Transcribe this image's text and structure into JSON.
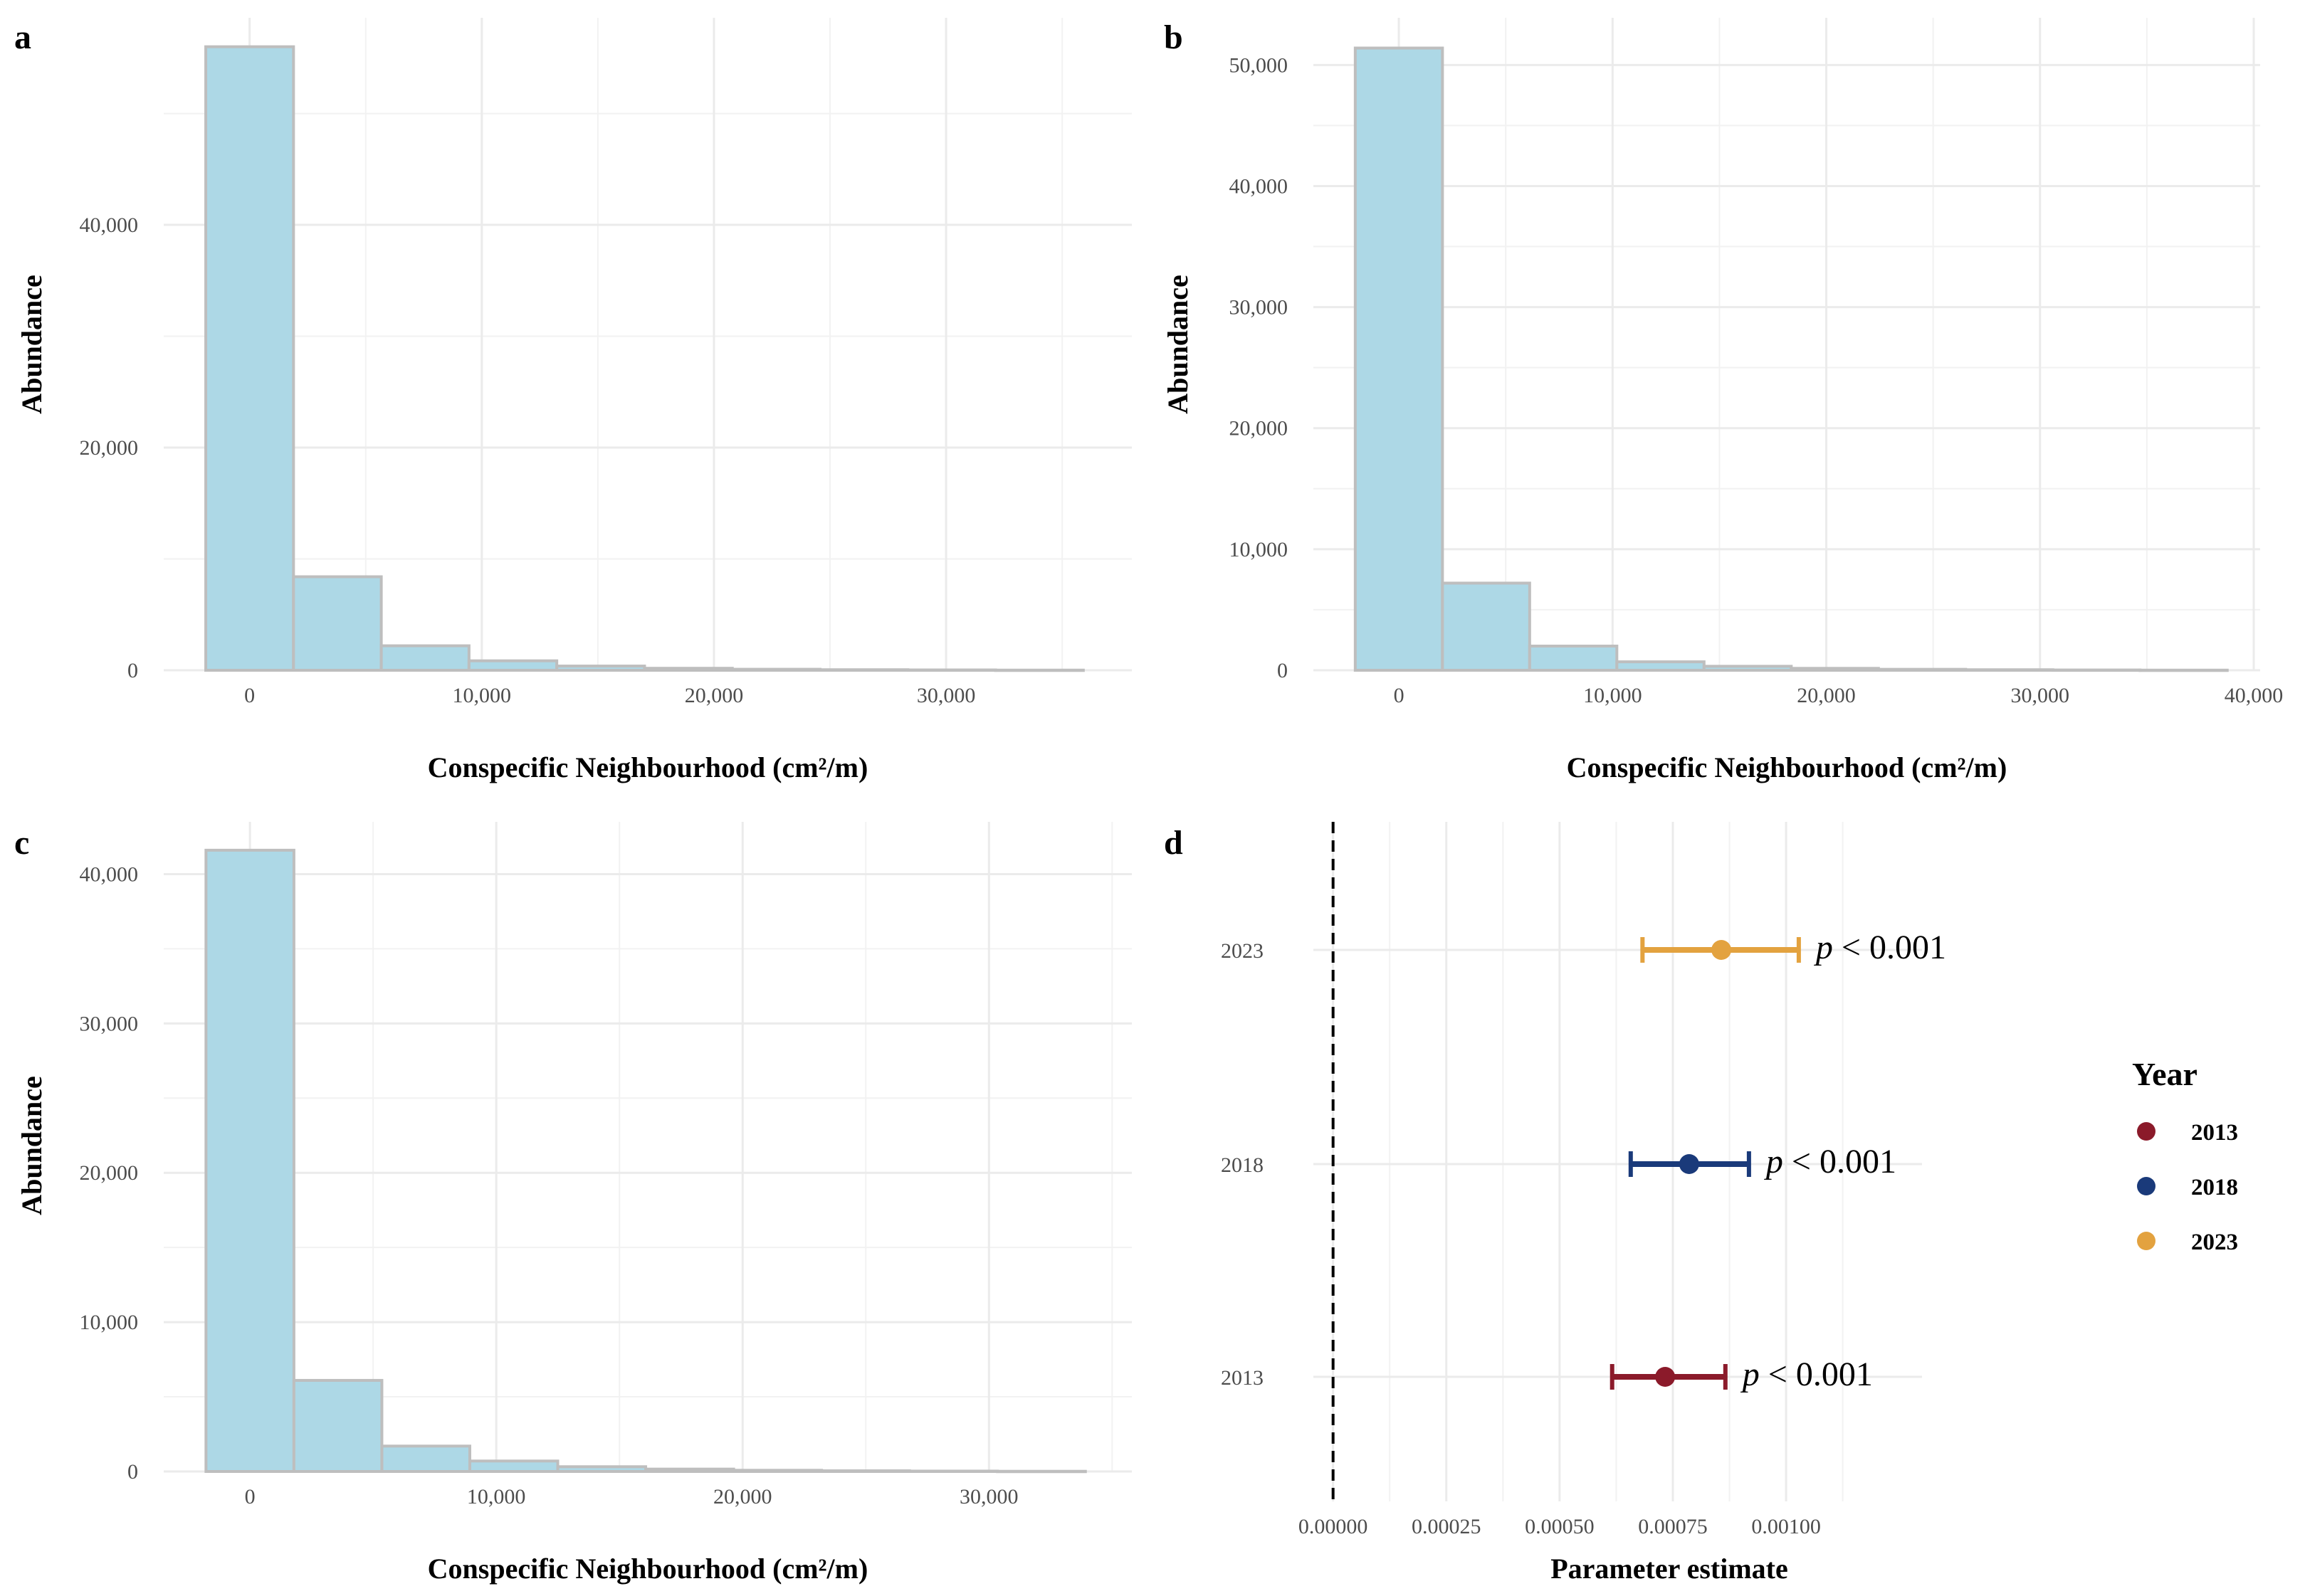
{
  "chart_data": [
    {
      "panel": "a",
      "type": "bar",
      "subtype": "histogram",
      "xlabel": "Conspecific Neighbourhood (cm²/m)",
      "ylabel": "Abundance",
      "xlim": [
        -3700,
        38000
      ],
      "ylim": [
        0,
        58600
      ],
      "x_ticks": [
        0,
        10000,
        20000,
        30000
      ],
      "x_tick_labels": [
        "0",
        "10,000",
        "20,000",
        "30,000"
      ],
      "y_ticks": [
        0,
        20000,
        40000
      ],
      "y_tick_labels": [
        "0",
        "20,000",
        "40,000"
      ],
      "bin_edges": [
        -1890,
        1890,
        5670,
        9450,
        13230,
        17010,
        20790,
        24570,
        28350,
        32130,
        35910
      ],
      "values": [
        56000,
        8400,
        2200,
        850,
        380,
        180,
        90,
        50,
        30,
        15
      ]
    },
    {
      "panel": "b",
      "type": "bar",
      "subtype": "histogram",
      "xlabel": "Conspecific Neighbourhood (cm²/m)",
      "ylabel": "Abundance",
      "xlim": [
        -4000,
        40300
      ],
      "ylim": [
        0,
        53900
      ],
      "x_ticks": [
        0,
        10000,
        20000,
        30000,
        40000
      ],
      "x_tick_labels": [
        "0",
        "10,000",
        "20,000",
        "30,000",
        "40,000"
      ],
      "y_ticks": [
        0,
        10000,
        20000,
        30000,
        40000,
        50000
      ],
      "y_tick_labels": [
        "0",
        "10,000",
        "20,000",
        "30,000",
        "40,000",
        "50,000"
      ],
      "bin_edges": [
        -2040,
        2040,
        6120,
        10200,
        14280,
        18360,
        22440,
        26520,
        30600,
        34680,
        38760
      ],
      "values": [
        51400,
        7200,
        2000,
        700,
        330,
        160,
        80,
        45,
        25,
        12
      ]
    },
    {
      "panel": "c",
      "type": "bar",
      "subtype": "histogram",
      "xlabel": "Conspecific Neighbourhood (cm²/m)",
      "ylabel": "Abundance",
      "xlim": [
        -3500,
        35800
      ],
      "ylim": [
        0,
        43500
      ],
      "x_ticks": [
        0,
        10000,
        20000,
        30000
      ],
      "x_tick_labels": [
        "0",
        "10,000",
        "20,000",
        "30,000"
      ],
      "y_ticks": [
        0,
        10000,
        20000,
        30000,
        40000
      ],
      "y_tick_labels": [
        "0",
        "10,000",
        "20,000",
        "30,000",
        "40,000"
      ],
      "bin_edges": [
        -1785,
        1785,
        5355,
        8925,
        12495,
        16065,
        19635,
        23205,
        26775,
        30345,
        33915
      ],
      "values": [
        41600,
        6100,
        1700,
        700,
        320,
        160,
        80,
        45,
        25,
        12
      ]
    },
    {
      "panel": "d",
      "type": "scatter",
      "subtype": "coefficient-plot",
      "xlabel": "Parameter estimate",
      "ylabel": "",
      "xlim": [
        -4.35e-05,
        0.0013
      ],
      "x_ticks": [
        0,
        0.00025,
        0.0005,
        0.00075,
        0.001
      ],
      "x_tick_labels": [
        "0.00000",
        "0.00025",
        "0.00050",
        "0.00075",
        "0.00100"
      ],
      "categories": [
        "2013",
        "2018",
        "2023"
      ],
      "reference_line": 0,
      "series": [
        {
          "name": "2013",
          "estimate": 0.000733,
          "lower": 0.000616,
          "upper": 0.000866,
          "color": "#8b1a2a",
          "p_label": "p < 0.001",
          "p_prefix": "p",
          "p_rest": " < 0.001"
        },
        {
          "name": "2018",
          "estimate": 0.000786,
          "lower": 0.000657,
          "upper": 0.000918,
          "color": "#1a3a7a",
          "p_label": "p < 0.001",
          "p_prefix": "p",
          "p_rest": " < 0.001"
        },
        {
          "name": "2023",
          "estimate": 0.000857,
          "lower": 0.000683,
          "upper": 0.001028,
          "color": "#e3a23f",
          "p_label": "p < 0.001",
          "p_prefix": "p",
          "p_rest": " < 0.001"
        }
      ],
      "legend": {
        "title": "Year",
        "position": "right",
        "entries": [
          "2013",
          "2018",
          "2023"
        ]
      }
    }
  ]
}
